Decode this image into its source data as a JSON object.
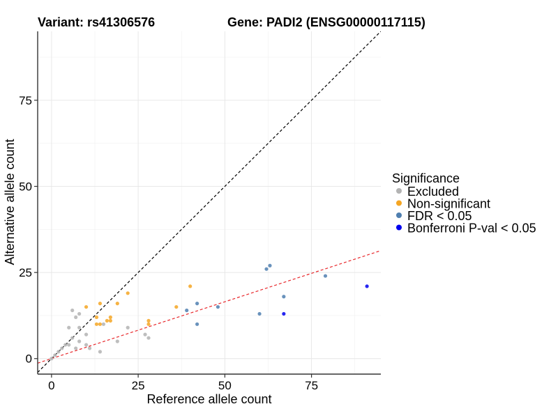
{
  "chart_data": {
    "type": "scatter",
    "title_left": "Variant: rs41306576",
    "title_right": "Gene: PADI2 (ENSG00000117115)",
    "xlabel": "Reference allele count",
    "ylabel": "Alternative allele count",
    "xlim": [
      -4,
      95
    ],
    "ylim": [
      -4.5,
      95
    ],
    "xticks": [
      0,
      25,
      50,
      75
    ],
    "yticks": [
      0,
      25,
      50,
      75
    ],
    "grid": true,
    "legend": {
      "title": "Significance",
      "placement": "right",
      "entries": [
        {
          "label": "Excluded",
          "color": "#b3b3b3"
        },
        {
          "label": "Non-significant",
          "color": "#f5a623"
        },
        {
          "label": "FDR < 0.05",
          "color": "#4f7fb0"
        },
        {
          "label": "Bonferroni P-val < 0.05",
          "color": "#0000ee"
        }
      ]
    },
    "reference_lines": [
      {
        "style": "dashed",
        "color": "#000000",
        "intercept": 0,
        "slope": 1
      },
      {
        "style": "dashed",
        "color": "#e8262a",
        "intercept": 0,
        "slope": 0.33
      }
    ],
    "series": [
      {
        "name": "Excluded",
        "color": "#b3b3b3",
        "points": [
          [
            0,
            0
          ],
          [
            1,
            1
          ],
          [
            2,
            2
          ],
          [
            3,
            3
          ],
          [
            4,
            4
          ],
          [
            5,
            9
          ],
          [
            5,
            4
          ],
          [
            6,
            14
          ],
          [
            6,
            6
          ],
          [
            7,
            12
          ],
          [
            7,
            3
          ],
          [
            8,
            13
          ],
          [
            8,
            9
          ],
          [
            8,
            5
          ],
          [
            10,
            7
          ],
          [
            10,
            4
          ],
          [
            11,
            3
          ],
          [
            14,
            2
          ],
          [
            15,
            10
          ],
          [
            19,
            5
          ],
          [
            22,
            9
          ],
          [
            27,
            7
          ],
          [
            28,
            6
          ]
        ]
      },
      {
        "name": "Non-significant",
        "color": "#f5a623",
        "points": [
          [
            10,
            15
          ],
          [
            13,
            12
          ],
          [
            13,
            10
          ],
          [
            14,
            10
          ],
          [
            14,
            16
          ],
          [
            16,
            11
          ],
          [
            17,
            12
          ],
          [
            17,
            11
          ],
          [
            19,
            16
          ],
          [
            22,
            19
          ],
          [
            28,
            10
          ],
          [
            28,
            11
          ],
          [
            36,
            15
          ],
          [
            40,
            21
          ]
        ]
      },
      {
        "name": "FDR < 0.05",
        "color": "#4f7fb0",
        "points": [
          [
            39,
            14
          ],
          [
            42,
            16
          ],
          [
            42,
            10
          ],
          [
            48,
            15
          ],
          [
            60,
            13
          ],
          [
            62,
            26
          ],
          [
            63,
            27
          ],
          [
            67,
            18
          ],
          [
            79,
            24
          ]
        ]
      },
      {
        "name": "Bonferroni P-val < 0.05",
        "color": "#0000ee",
        "points": [
          [
            67,
            13
          ],
          [
            91,
            21
          ]
        ]
      }
    ]
  }
}
